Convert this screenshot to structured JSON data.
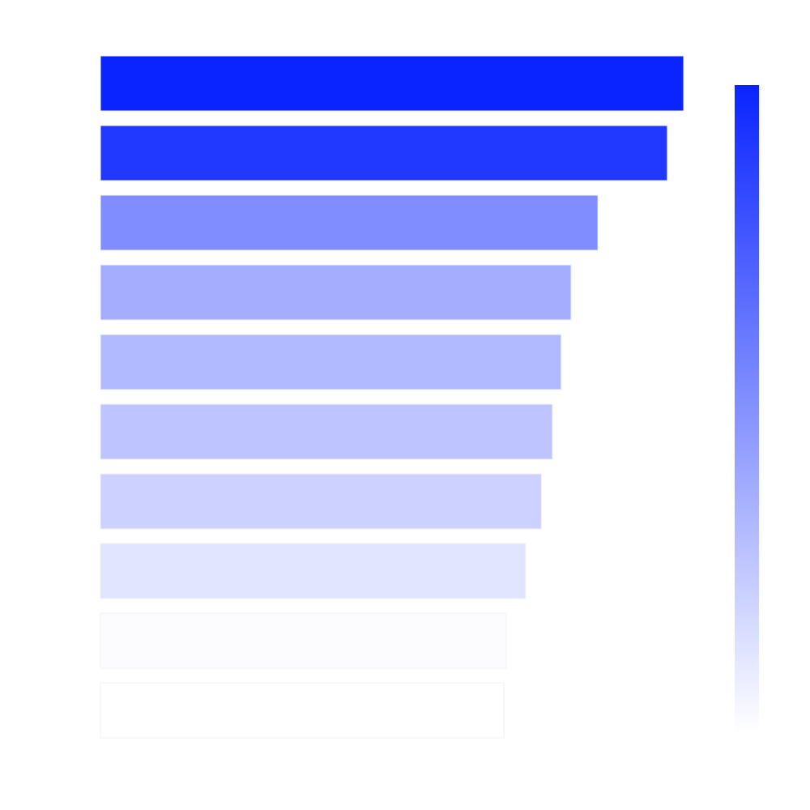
{
  "chart_data": {
    "type": "bar",
    "orientation": "horizontal",
    "values": [
      100,
      97.2,
      85.3,
      80.7,
      79,
      77.5,
      75.6,
      72.9,
      69.6,
      69.2
    ],
    "xlim": [
      0,
      100
    ],
    "colormap": [
      "#ffffff",
      "#0a24ff"
    ],
    "clim": [
      69.2,
      100
    ],
    "colorbar": true
  }
}
